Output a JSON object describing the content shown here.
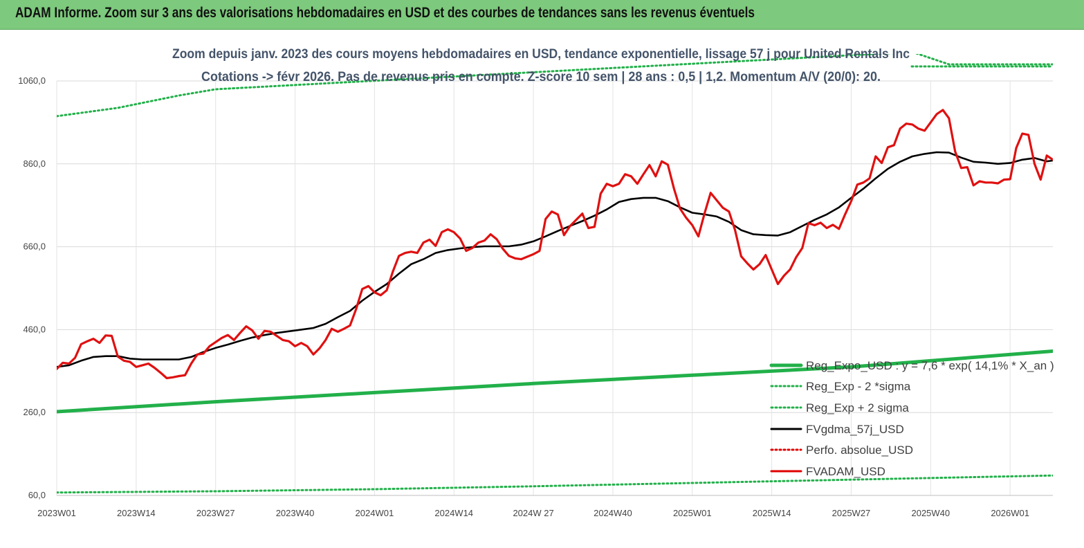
{
  "banner": {
    "title": "ADAM Informe. Zoom sur 3 ans des valorisations hebdomadaires en USD et des courbes de tendances sans les revenus éventuels"
  },
  "chart_data": {
    "type": "line",
    "subtitle_line1": "Zoom depuis janv. 2023 des cours moyens hebdomadaires en USD, tendance exponentielle, lissage 57 j pour United Rentals Inc",
    "subtitle_line2": "Cotations -> févr 2026.  Pas de revenus pris en compte. Z-score 10 sem  | 28 ans : 0,5  | 1,2. Momentum A/V (20/0): 20.",
    "ylim": [
      60,
      1060
    ],
    "yticks": [
      "1060,0",
      "860,0",
      "660,0",
      "460,0",
      "260,0",
      "60,0"
    ],
    "ytick_values": [
      1060,
      860,
      660,
      460,
      260,
      60
    ],
    "xticks": [
      "2023W01",
      "2023W14",
      "2023W27",
      "2023W40",
      "2024W01",
      "2024W14",
      "2024W 27",
      "2024W40",
      "2025W01",
      "2025W14",
      "2025W27",
      "2025W40",
      "2026W01"
    ],
    "xtick_weeks": [
      0,
      13,
      26,
      39,
      52,
      65,
      78,
      91,
      104,
      117,
      130,
      143,
      156
    ],
    "week_count": 163,
    "grid": true,
    "legend_position": "bottom-right",
    "legend": [
      {
        "label": "Reg_Expo_USD : y = 7,6  * exp( 14,1% *  X_an )",
        "color": "#22b04a",
        "style": "thick"
      },
      {
        "label": "Reg_Exp - 2 *sigma",
        "color": "#22b04a",
        "style": "dotted"
      },
      {
        "label": "Reg_Exp + 2 sigma",
        "color": "#22b04a",
        "style": "dotted"
      },
      {
        "label": "FVgdma_57j_USD",
        "color": "#000000",
        "style": "solid"
      },
      {
        "label": "Perfo. absolue_USD",
        "color": "#e00000",
        "style": "dotted"
      },
      {
        "label": "FVADAM_USD",
        "color": "#e00000",
        "style": "solid"
      }
    ],
    "series": [
      {
        "name": "FVADAM_USD",
        "color": "#e01010",
        "points": [
          [
            0,
            365
          ],
          [
            1,
            380
          ],
          [
            2,
            378
          ],
          [
            3,
            392
          ],
          [
            4,
            425
          ],
          [
            5,
            432
          ],
          [
            6,
            438
          ],
          [
            7,
            428
          ],
          [
            8,
            446
          ],
          [
            9,
            445
          ],
          [
            10,
            395
          ],
          [
            11,
            385
          ],
          [
            12,
            382
          ],
          [
            13,
            370
          ],
          [
            14,
            374
          ],
          [
            15,
            378
          ],
          [
            16,
            368
          ],
          [
            17,
            356
          ],
          [
            18,
            343
          ],
          [
            19,
            345
          ],
          [
            20,
            348
          ],
          [
            21,
            350
          ],
          [
            22,
            378
          ],
          [
            23,
            400
          ],
          [
            24,
            402
          ],
          [
            25,
            420
          ],
          [
            26,
            430
          ],
          [
            27,
            440
          ],
          [
            28,
            447
          ],
          [
            29,
            435
          ],
          [
            30,
            452
          ],
          [
            31,
            468
          ],
          [
            32,
            458
          ],
          [
            33,
            438
          ],
          [
            34,
            457
          ],
          [
            35,
            455
          ],
          [
            36,
            445
          ],
          [
            37,
            435
          ],
          [
            38,
            432
          ],
          [
            39,
            420
          ],
          [
            40,
            428
          ],
          [
            41,
            420
          ],
          [
            42,
            400
          ],
          [
            43,
            415
          ],
          [
            44,
            435
          ],
          [
            45,
            462
          ],
          [
            46,
            455
          ],
          [
            47,
            462
          ],
          [
            48,
            470
          ],
          [
            49,
            510
          ],
          [
            50,
            558
          ],
          [
            51,
            565
          ],
          [
            52,
            550
          ],
          [
            53,
            543
          ],
          [
            54,
            555
          ],
          [
            55,
            600
          ],
          [
            56,
            638
          ],
          [
            57,
            645
          ],
          [
            58,
            648
          ],
          [
            59,
            645
          ],
          [
            60,
            670
          ],
          [
            61,
            677
          ],
          [
            62,
            662
          ],
          [
            63,
            695
          ],
          [
            64,
            702
          ],
          [
            65,
            695
          ],
          [
            66,
            680
          ],
          [
            67,
            650
          ],
          [
            68,
            657
          ],
          [
            69,
            670
          ],
          [
            70,
            675
          ],
          [
            71,
            690
          ],
          [
            72,
            678
          ],
          [
            73,
            655
          ],
          [
            74,
            638
          ],
          [
            75,
            632
          ],
          [
            76,
            630
          ],
          [
            77,
            636
          ],
          [
            78,
            642
          ],
          [
            79,
            650
          ],
          [
            80,
            727
          ],
          [
            81,
            745
          ],
          [
            82,
            738
          ],
          [
            83,
            688
          ],
          [
            84,
            710
          ],
          [
            85,
            725
          ],
          [
            86,
            740
          ],
          [
            87,
            705
          ],
          [
            88,
            708
          ],
          [
            89,
            788
          ],
          [
            90,
            812
          ],
          [
            91,
            806
          ],
          [
            92,
            812
          ],
          [
            93,
            835
          ],
          [
            94,
            830
          ],
          [
            95,
            812
          ],
          [
            96,
            835
          ],
          [
            97,
            857
          ],
          [
            98,
            830
          ],
          [
            99,
            866
          ],
          [
            100,
            858
          ],
          [
            101,
            800
          ],
          [
            102,
            752
          ],
          [
            103,
            730
          ],
          [
            104,
            712
          ],
          [
            105,
            685
          ],
          [
            106,
            740
          ],
          [
            107,
            790
          ],
          [
            108,
            772
          ],
          [
            109,
            754
          ],
          [
            110,
            745
          ],
          [
            111,
            700
          ],
          [
            112,
            637
          ],
          [
            113,
            620
          ],
          [
            114,
            605
          ],
          [
            115,
            618
          ],
          [
            116,
            640
          ],
          [
            117,
            605
          ],
          [
            118,
            570
          ],
          [
            119,
            590
          ],
          [
            120,
            605
          ],
          [
            121,
            635
          ],
          [
            122,
            657
          ],
          [
            123,
            717
          ],
          [
            124,
            712
          ],
          [
            125,
            718
          ],
          [
            126,
            705
          ],
          [
            127,
            713
          ],
          [
            128,
            703
          ],
          [
            129,
            738
          ],
          [
            130,
            770
          ],
          [
            131,
            810
          ],
          [
            132,
            815
          ],
          [
            133,
            825
          ],
          [
            134,
            878
          ],
          [
            135,
            862
          ],
          [
            136,
            900
          ],
          [
            137,
            905
          ],
          [
            138,
            945
          ],
          [
            139,
            957
          ],
          [
            140,
            955
          ],
          [
            141,
            945
          ],
          [
            142,
            940
          ],
          [
            143,
            960
          ],
          [
            144,
            980
          ],
          [
            145,
            990
          ],
          [
            146,
            970
          ],
          [
            147,
            890
          ],
          [
            148,
            850
          ],
          [
            149,
            852
          ],
          [
            150,
            808
          ],
          [
            151,
            818
          ],
          [
            152,
            815
          ],
          [
            153,
            815
          ],
          [
            154,
            813
          ],
          [
            155,
            822
          ],
          [
            156,
            823
          ],
          [
            157,
            898
          ],
          [
            158,
            933
          ],
          [
            159,
            930
          ],
          [
            160,
            860
          ],
          [
            161,
            822
          ],
          [
            162,
            880
          ],
          [
            163,
            870
          ]
        ]
      },
      {
        "name": "FVgdma_57j_USD",
        "color": "#000000",
        "points": [
          [
            0,
            370
          ],
          [
            2,
            374
          ],
          [
            4,
            385
          ],
          [
            6,
            394
          ],
          [
            8,
            396
          ],
          [
            10,
            396
          ],
          [
            12,
            390
          ],
          [
            14,
            388
          ],
          [
            16,
            388
          ],
          [
            18,
            388
          ],
          [
            20,
            388
          ],
          [
            22,
            394
          ],
          [
            24,
            406
          ],
          [
            26,
            416
          ],
          [
            28,
            424
          ],
          [
            30,
            433
          ],
          [
            32,
            441
          ],
          [
            34,
            447
          ],
          [
            36,
            452
          ],
          [
            38,
            456
          ],
          [
            40,
            460
          ],
          [
            42,
            464
          ],
          [
            44,
            474
          ],
          [
            46,
            490
          ],
          [
            48,
            505
          ],
          [
            50,
            530
          ],
          [
            52,
            551
          ],
          [
            54,
            570
          ],
          [
            56,
            595
          ],
          [
            58,
            618
          ],
          [
            60,
            630
          ],
          [
            62,
            645
          ],
          [
            64,
            652
          ],
          [
            66,
            656
          ],
          [
            68,
            659
          ],
          [
            70,
            661
          ],
          [
            72,
            661
          ],
          [
            74,
            661
          ],
          [
            76,
            665
          ],
          [
            78,
            673
          ],
          [
            80,
            685
          ],
          [
            82,
            698
          ],
          [
            84,
            710
          ],
          [
            86,
            722
          ],
          [
            88,
            735
          ],
          [
            90,
            750
          ],
          [
            92,
            768
          ],
          [
            94,
            775
          ],
          [
            96,
            778
          ],
          [
            98,
            778
          ],
          [
            100,
            770
          ],
          [
            102,
            755
          ],
          [
            104,
            742
          ],
          [
            106,
            738
          ],
          [
            108,
            733
          ],
          [
            110,
            720
          ],
          [
            112,
            700
          ],
          [
            114,
            690
          ],
          [
            116,
            688
          ],
          [
            118,
            687
          ],
          [
            120,
            695
          ],
          [
            122,
            710
          ],
          [
            124,
            725
          ],
          [
            126,
            738
          ],
          [
            128,
            755
          ],
          [
            130,
            778
          ],
          [
            132,
            800
          ],
          [
            134,
            825
          ],
          [
            136,
            848
          ],
          [
            138,
            865
          ],
          [
            140,
            878
          ],
          [
            142,
            884
          ],
          [
            144,
            888
          ],
          [
            146,
            887
          ],
          [
            148,
            875
          ],
          [
            150,
            865
          ],
          [
            152,
            863
          ],
          [
            154,
            860
          ],
          [
            156,
            862
          ],
          [
            158,
            870
          ],
          [
            160,
            874
          ],
          [
            162,
            866
          ],
          [
            163,
            868
          ]
        ]
      },
      {
        "name": "Reg_Expo_USD",
        "color": "#22b04a",
        "points": [
          [
            0,
            262
          ],
          [
            26,
            286
          ],
          [
            52,
            308
          ],
          [
            78,
            330
          ],
          [
            104,
            350
          ],
          [
            130,
            370
          ],
          [
            163,
            408
          ]
        ]
      },
      {
        "name": "Reg_Exp - 2 *sigma",
        "color": "#22b04a",
        "points": [
          [
            0,
            67
          ],
          [
            26,
            70
          ],
          [
            52,
            75
          ],
          [
            78,
            82
          ],
          [
            104,
            90
          ],
          [
            130,
            98
          ],
          [
            163,
            108
          ]
        ]
      },
      {
        "name": "Reg_Exp + 2 sigma",
        "color": "#22b04a",
        "points": [
          [
            0,
            975
          ],
          [
            10,
            995
          ],
          [
            20,
            1025
          ],
          [
            26,
            1040
          ],
          [
            140,
            1130
          ],
          [
            146,
            1100
          ],
          [
            163,
            1100
          ]
        ]
      }
    ]
  }
}
